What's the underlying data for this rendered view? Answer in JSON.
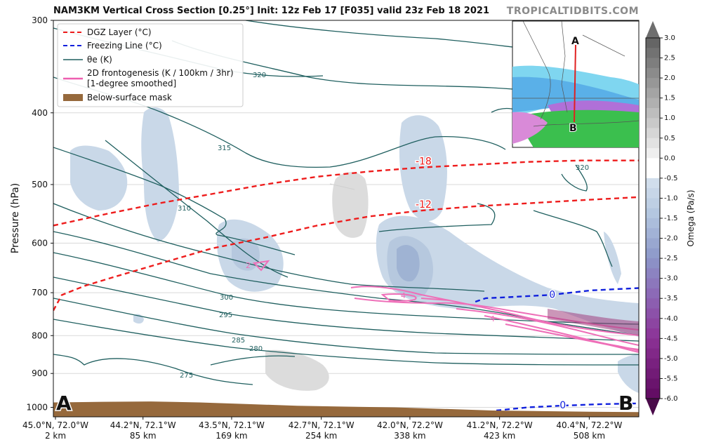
{
  "title": "NAM3KM Vertical Cross Section [0.25°] Init: 12z Feb 17 [F035] valid 23z Feb 18 2021",
  "brand": "TROPICALTIDBITS.COM",
  "chart_data": {
    "type": "contour",
    "ylabel": "Pressure (hPa)",
    "y_scale": "log",
    "ylim": [
      1030,
      300
    ],
    "y_ticks": [
      300,
      400,
      500,
      600,
      700,
      800,
      900,
      1000
    ],
    "x_ticks": [
      {
        "loc": "45.0°N, 72.0°W",
        "dist": "2 km"
      },
      {
        "loc": "44.2°N, 72.1°W",
        "dist": "85 km"
      },
      {
        "loc": "43.5°N, 72.1°W",
        "dist": "169 km"
      },
      {
        "loc": "42.7°N, 72.1°W",
        "dist": "254 km"
      },
      {
        "loc": "42.0°N, 72.2°W",
        "dist": "338 km"
      },
      {
        "loc": "41.2°N, 72.2°W",
        "dist": "423 km"
      },
      {
        "loc": "40.4°N, 72.2°W",
        "dist": "508 km"
      }
    ],
    "x_km_range": [
      0,
      555
    ],
    "endpoints": {
      "left": "A",
      "right": "B"
    },
    "legend": {
      "placement": "top-left",
      "entries": [
        {
          "label": "DGZ Layer (°C)",
          "style": "dashed",
          "color": "#ee1c1c"
        },
        {
          "label": "Freezing Line (°C)",
          "style": "dashed",
          "color": "#1020dd"
        },
        {
          "label": "θe (K)",
          "style": "solid",
          "color": "#1f5f5f"
        },
        {
          "label": "2D frontogenesis (K / 100km / 3hr)",
          "label2": "[1-degree smoothed]",
          "style": "solid",
          "color": "#ee5fb0"
        },
        {
          "label": "Below-surface mask",
          "style": "patch",
          "color": "#96693c"
        }
      ]
    },
    "colorbar": {
      "label": "Omega (Pa/s)",
      "min": -6.0,
      "max": 3.0,
      "ticks": [
        "3.0",
        "2.5",
        "2.0",
        "1.5",
        "1.0",
        "0.5",
        "0.0",
        "-0.5",
        "-1.0",
        "-1.5",
        "-2.0",
        "-2.5",
        "-3.0",
        "-3.5",
        "-4.0",
        "-4.5",
        "-5.0",
        "-5.5",
        "-6.0"
      ]
    },
    "dgz_lines": [
      {
        "label": "-18",
        "points": [
          [
            0,
            568
          ],
          [
            50,
            548
          ],
          [
            100,
            530
          ],
          [
            150,
            515
          ],
          [
            200,
            500
          ],
          [
            250,
            488
          ],
          [
            300,
            480
          ],
          [
            350,
            474
          ],
          [
            400,
            470
          ],
          [
            450,
            466
          ],
          [
            500,
            464
          ],
          [
            555,
            464
          ]
        ]
      },
      {
        "label": "-12",
        "points": [
          [
            0,
            740
          ],
          [
            8,
            705
          ],
          [
            30,
            685
          ],
          [
            60,
            665
          ],
          [
            100,
            640
          ],
          [
            150,
            610
          ],
          [
            200,
            590
          ],
          [
            250,
            568
          ],
          [
            300,
            552
          ],
          [
            350,
            542
          ],
          [
            400,
            535
          ],
          [
            450,
            530
          ],
          [
            500,
            525
          ],
          [
            555,
            520
          ]
        ]
      }
    ],
    "freezing_lines": [
      {
        "label": "0",
        "points": [
          [
            400,
            720
          ],
          [
            410,
            712
          ],
          [
            430,
            710
          ],
          [
            470,
            705
          ],
          [
            510,
            695
          ],
          [
            555,
            690
          ]
        ]
      },
      {
        "label": "0",
        "points": [
          [
            420,
            1010
          ],
          [
            450,
            1000
          ],
          [
            480,
            995
          ],
          [
            520,
            990
          ],
          [
            555,
            988
          ]
        ]
      }
    ],
    "theta_e_labels": [
      "320",
      "315",
      "310",
      "300",
      "295",
      "285",
      "280",
      "275"
    ],
    "frontogenesis_labels": [
      "2",
      "4",
      "4"
    ],
    "surface_mask": {
      "label": "Below-surface mask",
      "pressure_hPa": [
        985,
        983,
        982,
        985,
        990,
        995,
        998,
        1000,
        1005,
        1010,
        1012,
        1014,
        1015
      ]
    }
  }
}
